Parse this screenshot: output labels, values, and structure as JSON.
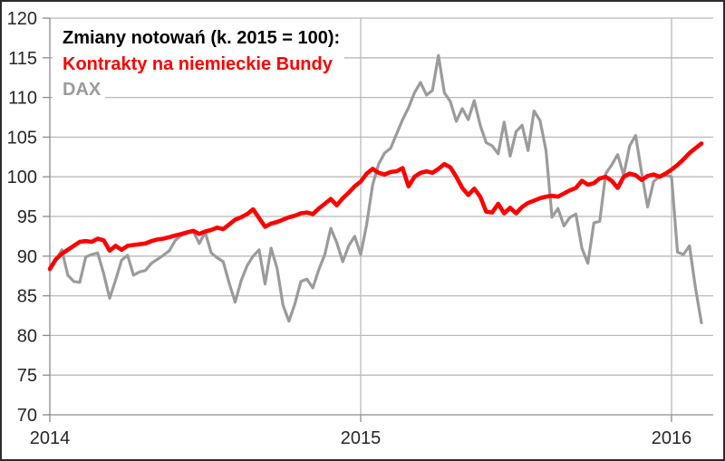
{
  "chart_data": {
    "type": "line",
    "title": "Zmiany notowań (k. 2015 = 100):",
    "x_unit": "week",
    "x_tick_labels": [
      "2014",
      "2015",
      "2016"
    ],
    "x_tick_weeks": [
      0,
      52,
      104
    ],
    "y_ticks": [
      70,
      75,
      80,
      85,
      90,
      95,
      100,
      105,
      110,
      115,
      120
    ],
    "ylim": [
      70,
      120
    ],
    "grid": true,
    "legend_position": "top-left-inside",
    "series": [
      {
        "name": "Kontrakty na niemieckie Bundy",
        "color": "#fe0000",
        "values": [
          88.4,
          89.6,
          90.3,
          90.8,
          91.3,
          91.8,
          91.9,
          91.8,
          92.2,
          92.0,
          90.7,
          91.3,
          90.8,
          91.3,
          91.4,
          91.5,
          91.6,
          91.9,
          92.1,
          92.2,
          92.4,
          92.6,
          92.8,
          93.0,
          93.2,
          92.8,
          93.1,
          93.3,
          93.6,
          93.4,
          94.0,
          94.6,
          94.9,
          95.3,
          95.9,
          94.8,
          93.7,
          94.1,
          94.3,
          94.6,
          94.9,
          95.1,
          95.4,
          95.5,
          95.3,
          96.0,
          96.6,
          97.2,
          96.4,
          97.3,
          98.0,
          98.8,
          99.4,
          100.4,
          101.0,
          100.5,
          100.3,
          100.6,
          100.7,
          101.1,
          98.8,
          100.0,
          100.5,
          100.7,
          100.5,
          101.0,
          101.6,
          101.2,
          100.0,
          98.6,
          97.7,
          98.5,
          97.5,
          95.6,
          95.5,
          96.6,
          95.4,
          96.1,
          95.4,
          96.2,
          96.7,
          97.0,
          97.3,
          97.5,
          97.6,
          97.5,
          97.9,
          98.3,
          98.6,
          99.5,
          99.0,
          99.2,
          99.8,
          100.0,
          99.5,
          98.6,
          100.0,
          100.4,
          100.2,
          99.6,
          100.1,
          100.3,
          100.0,
          100.4,
          100.9,
          101.5,
          102.2,
          103.0,
          103.6,
          104.2
        ]
      },
      {
        "name": "DAX",
        "color": "#9b9b9b",
        "values": [
          88.2,
          89.4,
          90.8,
          87.6,
          86.8,
          86.7,
          89.9,
          90.2,
          90.4,
          87.8,
          84.7,
          87.0,
          89.5,
          90.1,
          87.6,
          88.0,
          88.2,
          89.1,
          89.6,
          90.1,
          90.7,
          92.0,
          92.6,
          92.9,
          93.1,
          91.6,
          93.0,
          90.4,
          89.8,
          89.3,
          86.6,
          84.2,
          86.9,
          88.8,
          90.0,
          90.8,
          86.5,
          91.0,
          88.5,
          83.8,
          81.8,
          84.0,
          86.8,
          87.1,
          86.0,
          88.3,
          90.2,
          93.5,
          91.7,
          89.3,
          91.3,
          92.5,
          90.2,
          94.0,
          99.0,
          101.6,
          103.0,
          103.6,
          105.4,
          107.2,
          108.7,
          110.6,
          111.9,
          110.3,
          110.9,
          115.3,
          110.6,
          109.5,
          107.0,
          108.6,
          107.2,
          109.6,
          106.5,
          104.3,
          103.9,
          102.9,
          106.9,
          102.6,
          105.7,
          106.5,
          103.3,
          108.3,
          107.1,
          103.3,
          94.9,
          96.0,
          93.8,
          94.9,
          95.3,
          91.0,
          89.1,
          94.2,
          94.4,
          100.4,
          101.5,
          102.8,
          100.2,
          103.9,
          105.2,
          100.5,
          96.2,
          99.4,
          100.1,
          100.2,
          100.0,
          90.5,
          90.2,
          91.3,
          86.0,
          81.6
        ]
      }
    ]
  },
  "colors": {
    "bundy_line": "#fe0000",
    "dax_line": "#9b9b9b",
    "gridline": "#b9b9b9",
    "axis": "#8c8c8c",
    "tick_text": "#262626",
    "title_text": "#000000"
  }
}
